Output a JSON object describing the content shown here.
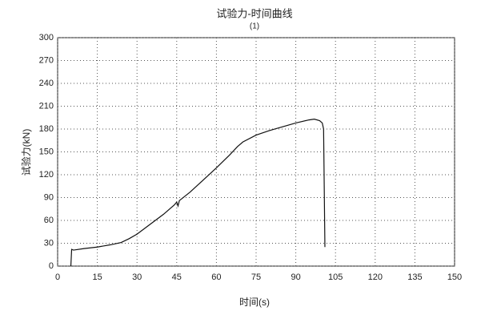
{
  "chart_data": {
    "type": "line",
    "title": "试验力-时间曲线",
    "subtitle": "(1)",
    "x_label": "时间(s)",
    "y_label": "试验力(kN)",
    "x": [
      5,
      5.3,
      6,
      10,
      15,
      20,
      24,
      27,
      30,
      35,
      40,
      44,
      45,
      45.5,
      46,
      50,
      55,
      60,
      65,
      68,
      70,
      75,
      80,
      85,
      90,
      95,
      97,
      99,
      100,
      100.5,
      101
    ],
    "series": [
      {
        "name": "试验力",
        "color": "#111111",
        "values": [
          0,
          22,
          21,
          23,
          25,
          28,
          31,
          36,
          42,
          55,
          68,
          80,
          84,
          79,
          86,
          97,
          113,
          129,
          146,
          157,
          163,
          172,
          178,
          183,
          188,
          192,
          193,
          191,
          188,
          180,
          25
        ]
      }
    ],
    "xlim": [
      0,
      150
    ],
    "xticks": [
      0,
      15,
      30,
      45,
      60,
      75,
      90,
      105,
      120,
      135,
      150
    ],
    "ylim": [
      0,
      300
    ],
    "yticks": [
      0,
      30,
      60,
      90,
      120,
      150,
      180,
      210,
      240,
      270,
      300
    ],
    "grid": true
  }
}
